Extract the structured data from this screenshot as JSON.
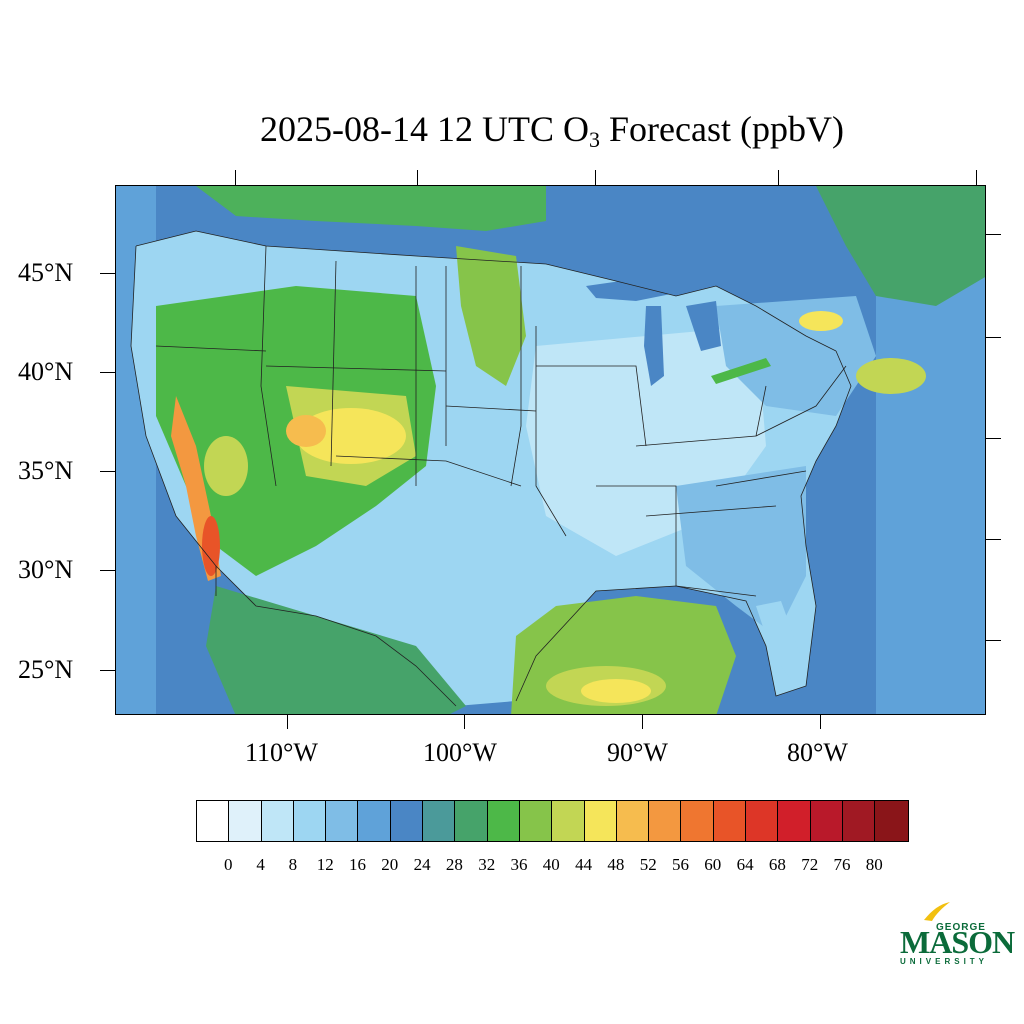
{
  "title": {
    "prefix": "2025-08-14 12 UTC O",
    "subscript": "3",
    "suffix": " Forecast (ppbV)"
  },
  "map": {
    "lat_labels": [
      "45°N",
      "40°N",
      "35°N",
      "30°N",
      "25°N"
    ],
    "lon_labels": [
      "110°W",
      "100°W",
      "90°W",
      "80°W"
    ]
  },
  "colorbar": {
    "colors": [
      "#ffffff",
      "#dff1fa",
      "#bfe6f7",
      "#9dd6f2",
      "#7fbde6",
      "#5fa2d9",
      "#4a86c5",
      "#4b9a9a",
      "#46a36a",
      "#4db848",
      "#86c44a",
      "#c2d654",
      "#f5e55a",
      "#f6bc4e",
      "#f39840",
      "#ef7630",
      "#e85428",
      "#dd3627",
      "#d11f2a",
      "#b9192a",
      "#a01923",
      "#8a1519"
    ],
    "labels": [
      "0",
      "4",
      "8",
      "12",
      "16",
      "20",
      "24",
      "28",
      "32",
      "36",
      "40",
      "44",
      "48",
      "52",
      "56",
      "60",
      "64",
      "68",
      "72",
      "76",
      "80"
    ]
  },
  "logo": {
    "line1": "GEORGE",
    "line2": "MASON",
    "line3": "UNIVERSITY",
    "colors": {
      "green": "#0b6b3a",
      "gold": "#f2c010"
    }
  }
}
